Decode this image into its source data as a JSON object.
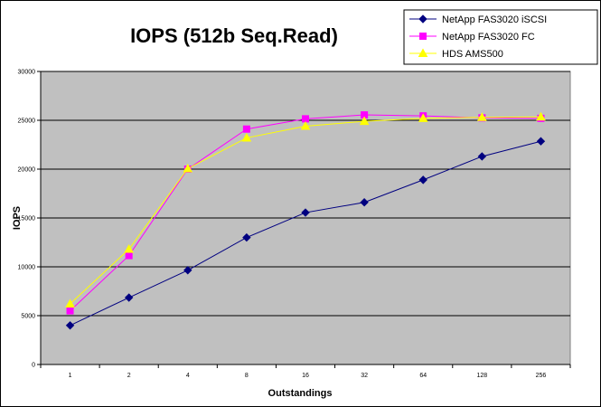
{
  "chart_data": {
    "type": "line",
    "title": "IOPS (512b Seq.Read)",
    "xlabel": "Outstandings",
    "ylabel": "IOPS",
    "categories": [
      "1",
      "2",
      "4",
      "8",
      "16",
      "32",
      "64",
      "128",
      "256"
    ],
    "yticks": [
      "0",
      "5000",
      "10000",
      "15000",
      "20000",
      "25000",
      "30000"
    ],
    "ylim": [
      0,
      30000
    ],
    "grid": true,
    "legend_position": "top-right",
    "plot_background": "#c0c0c0",
    "series": [
      {
        "name": "NetApp FAS3020 iSCSI",
        "color": "#000080",
        "marker": "diamond",
        "values": [
          4000,
          6850,
          9650,
          13000,
          15550,
          16600,
          18900,
          21300,
          22850
        ]
      },
      {
        "name": "NetApp FAS3020 FC",
        "color": "#ff00ff",
        "marker": "square",
        "values": [
          5500,
          11150,
          20000,
          24100,
          25150,
          25550,
          25450,
          25250,
          25200
        ]
      },
      {
        "name": "HDS AMS500",
        "color": "#ffff00",
        "marker": "triangle",
        "values": [
          6200,
          11800,
          20050,
          23200,
          24400,
          24900,
          25200,
          25300,
          25350
        ]
      }
    ]
  }
}
